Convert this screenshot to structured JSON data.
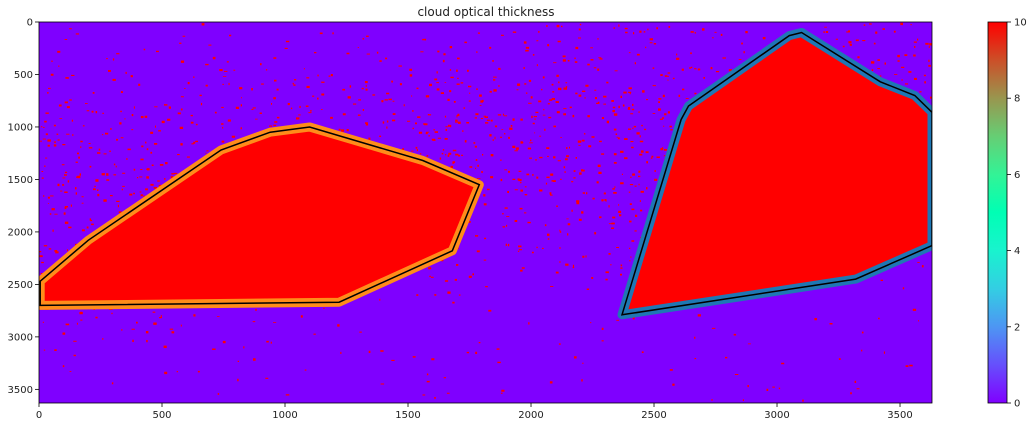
{
  "chart_data": {
    "type": "heatmap",
    "title": "cloud optical thickness",
    "xlim": [
      0,
      3630
    ],
    "ylim": [
      3630,
      0
    ],
    "x_ticks": [
      0,
      500,
      1000,
      1500,
      2000,
      2500,
      3000,
      3500
    ],
    "y_ticks": [
      0,
      500,
      1000,
      1500,
      2000,
      2500,
      3000,
      3500
    ],
    "colorbar": {
      "range": [
        0,
        10
      ],
      "ticks": [
        0,
        2,
        4,
        6,
        8,
        10
      ],
      "colormap": "rainbow"
    },
    "background_color": "#7f00ff",
    "cloud_color": "#ff0000",
    "regions": [
      {
        "outline_color": "#ff8c1a",
        "hull_color": "#000000",
        "hull": [
          [
            5,
            2700
          ],
          [
            1220,
            2670
          ],
          [
            1680,
            2180
          ],
          [
            1790,
            1550
          ],
          [
            1560,
            1320
          ],
          [
            1100,
            1000
          ],
          [
            940,
            1050
          ],
          [
            740,
            1220
          ],
          [
            200,
            2080
          ],
          [
            5,
            2470
          ]
        ]
      },
      {
        "outline_color": "#1f77b4",
        "hull_color": "#000000",
        "hull": [
          [
            2370,
            2790
          ],
          [
            3320,
            2450
          ],
          [
            3630,
            2130
          ],
          [
            3630,
            860
          ],
          [
            3560,
            700
          ],
          [
            3420,
            570
          ],
          [
            3100,
            100
          ],
          [
            3050,
            130
          ],
          [
            2640,
            800
          ],
          [
            2610,
            930
          ]
        ]
      }
    ]
  }
}
